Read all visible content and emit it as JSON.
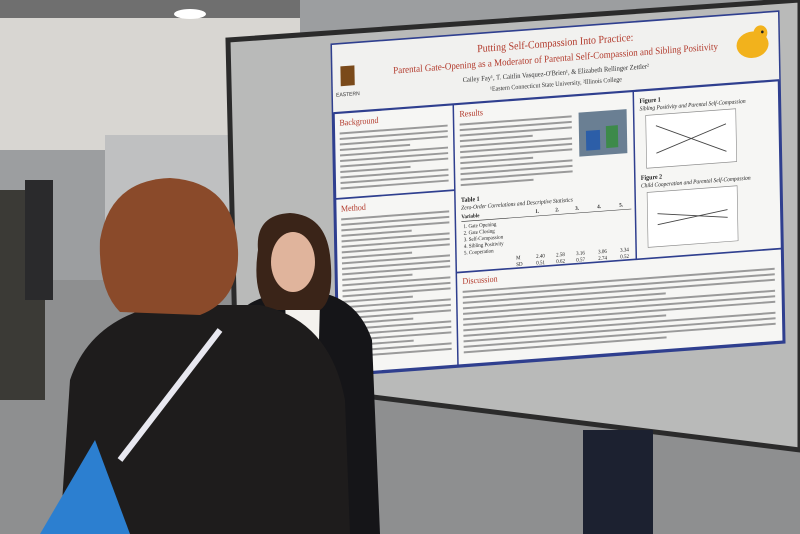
{
  "poster": {
    "logo": "EASTERN",
    "title": "Putting Self-Compassion Into Practice:",
    "subtitle": "Parental Gate-Opening as a Moderator of Parental Self-Compassion and Sibling Positivity",
    "authors": "Cailey Fay¹, T. Caitlin Vasquez-O'Brien¹, & Elizabeth Rellinger Zettler²",
    "affiliations": "¹Eastern Connecticut State University, ²Illinois College",
    "sections": [
      "Background",
      "Method",
      "Results",
      "Discussion"
    ],
    "figures": [
      {
        "label": "Figure 1",
        "caption": "Sibling Positivity and Parental Self-Compassion"
      },
      {
        "label": "Figure 2",
        "caption": "Child Cooperation and Parental Self-Compassion"
      }
    ],
    "table": {
      "label": "Table 1",
      "caption": "Zero-Order Correlations and Descriptive Statistics",
      "header": [
        "Variable",
        "1.",
        "2.",
        "3.",
        "4.",
        "5."
      ],
      "variables": [
        "1. Gate Opening",
        "2. Gate Closing",
        "3. Self-Compassion",
        "4. Sibling Positivity",
        "5. Cooperation"
      ],
      "stats": [
        [
          "M",
          "2.40",
          "2.58",
          "3.16",
          "3.06",
          "3.34"
        ],
        [
          "SD",
          "0.51",
          "0.62",
          "0.57",
          "2.74",
          "0.52"
        ]
      ]
    }
  }
}
